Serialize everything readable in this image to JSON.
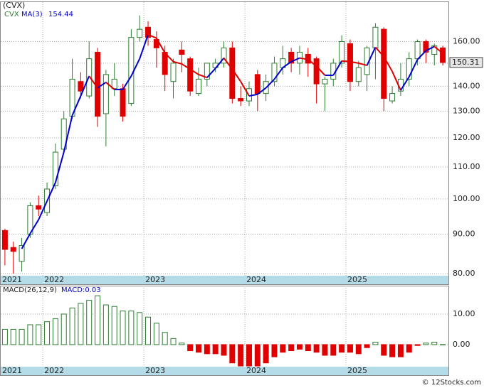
{
  "title": "(CVX)",
  "footer": "© 12Stocks.com",
  "chart_data": [
    {
      "type": "candlestick",
      "ticker": "CVX",
      "categories": [
        "2021",
        null,
        null,
        null,
        null,
        "2022",
        null,
        null,
        null,
        null,
        null,
        null,
        null,
        null,
        null,
        null,
        null,
        "2023",
        null,
        null,
        null,
        null,
        null,
        null,
        null,
        null,
        null,
        null,
        null,
        "2024",
        null,
        null,
        null,
        null,
        null,
        null,
        null,
        null,
        null,
        null,
        null,
        "2025",
        null,
        null,
        null,
        null,
        null,
        null,
        null,
        null,
        null,
        null,
        null
      ],
      "open": [
        91,
        86.5,
        83,
        90,
        98,
        96,
        104,
        116,
        128,
        142,
        136,
        155,
        129,
        139,
        139,
        133,
        162,
        167,
        161,
        155,
        142,
        156,
        152,
        137,
        143,
        148,
        150,
        157,
        135,
        134,
        145,
        137,
        142,
        148,
        155,
        150,
        154,
        152,
        141,
        143,
        150,
        159,
        142,
        145,
        157,
        166,
        134,
        138,
        143,
        152,
        160,
        154,
        157
      ],
      "high": [
        91.5,
        88,
        89,
        99,
        101,
        105,
        118,
        130,
        152,
        146,
        160,
        157,
        147,
        150,
        141,
        166,
        173,
        170,
        165,
        158,
        152,
        160,
        153,
        148,
        150,
        152,
        160,
        160,
        140,
        142,
        147,
        145,
        153,
        158,
        157,
        158,
        157,
        153,
        144,
        152,
        163,
        161,
        151,
        158,
        169,
        167,
        140,
        150,
        155,
        161,
        161,
        159,
        158
      ],
      "low": [
        82,
        80,
        80.5,
        89,
        95,
        95,
        103,
        115,
        127,
        135,
        135,
        124,
        117,
        136,
        126,
        132,
        160,
        158,
        148,
        138,
        135,
        146,
        136,
        136,
        140,
        146,
        148,
        133,
        132,
        132,
        130,
        134,
        140,
        145,
        146,
        145,
        144,
        133,
        130,
        140,
        148,
        138,
        140,
        138,
        143,
        130,
        133,
        136,
        140,
        149,
        150,
        149,
        149
      ],
      "close": [
        86,
        85.5,
        87,
        98,
        97,
        103,
        115,
        127,
        143,
        138,
        152,
        128,
        145,
        143,
        128,
        162,
        166,
        162,
        157,
        145,
        150,
        154,
        138,
        143,
        150,
        150,
        157,
        135,
        134,
        139,
        137,
        142,
        150,
        152,
        150,
        155,
        150,
        141,
        143,
        150,
        160,
        142,
        148,
        157,
        167,
        135,
        137,
        143,
        152,
        160,
        155,
        158,
        150.31
      ],
      "up_color": "#2e7d32",
      "down_color": "#e00000",
      "ma": {
        "name": "MA(3)",
        "up_color": "#0000cc",
        "down_color": "#e00000",
        "values": [
          null,
          null,
          86.17,
          90.17,
          94,
          99.33,
          105,
          115,
          128.33,
          136,
          144.33,
          139.33,
          141.67,
          138.67,
          138.67,
          144.33,
          152,
          163.33,
          161.67,
          154.67,
          150.67,
          149.67,
          147.33,
          145,
          143.67,
          147.67,
          152.33,
          147.33,
          142,
          136,
          136.67,
          139.33,
          143,
          148,
          150.67,
          152.33,
          151.67,
          148.67,
          144.67,
          144.67,
          151,
          150.67,
          150,
          149,
          157.33,
          153,
          146.33,
          138.33,
          144,
          151.67,
          155.67,
          157.67,
          154.44
        ]
      },
      "log_scale": true,
      "grid": true,
      "ylim": [
        79.5,
        180
      ],
      "yticks": [
        {
          "value": 80,
          "label": "80.00"
        },
        {
          "value": 90,
          "label": "90.00"
        },
        {
          "value": 100,
          "label": "100.00"
        },
        {
          "value": 110,
          "label": "110.00"
        },
        {
          "value": 120,
          "label": "120.00"
        },
        {
          "value": 130,
          "label": "130.00"
        },
        {
          "value": 140,
          "label": "140.00"
        },
        {
          "value": 150,
          "label": "150.00"
        },
        {
          "value": 160,
          "label": "160.00"
        }
      ]
    },
    {
      "type": "bar",
      "name": "MACD(26,12,9)",
      "value_label": "MACD:0.03",
      "categories": [
        "2021",
        null,
        null,
        null,
        null,
        "2022",
        null,
        null,
        null,
        null,
        null,
        null,
        null,
        null,
        null,
        null,
        null,
        "2023",
        null,
        null,
        null,
        null,
        null,
        null,
        null,
        null,
        null,
        null,
        null,
        "2024",
        null,
        null,
        null,
        null,
        null,
        null,
        null,
        null,
        null,
        null,
        null,
        "2025",
        null,
        null,
        null,
        null,
        null,
        null,
        null,
        null,
        null,
        null,
        null
      ],
      "values": [
        5,
        5,
        5,
        6.5,
        6.5,
        7.5,
        8.5,
        10,
        12,
        13.5,
        14.5,
        16,
        13,
        12.5,
        11,
        11,
        10.5,
        9,
        7,
        4,
        2,
        0.5,
        -2,
        -2.5,
        -3,
        -3,
        -3.5,
        -6,
        -7,
        -7,
        -7,
        -6,
        -4,
        -2.5,
        -2,
        -1.5,
        -2,
        -2.5,
        -3.5,
        -3.5,
        -2.5,
        -2.5,
        -3,
        -1,
        0.8,
        -3.5,
        -4,
        -4,
        -2.5,
        -0.3,
        0.5,
        0.8,
        0.03
      ],
      "up_color": "#2e7d32",
      "down_color": "#e00000",
      "grid": true,
      "ylim": [
        -7,
        19.3
      ],
      "yticks": [
        {
          "value": 10,
          "label": "10.00"
        },
        {
          "value": 0,
          "label": "0.00"
        }
      ]
    }
  ]
}
